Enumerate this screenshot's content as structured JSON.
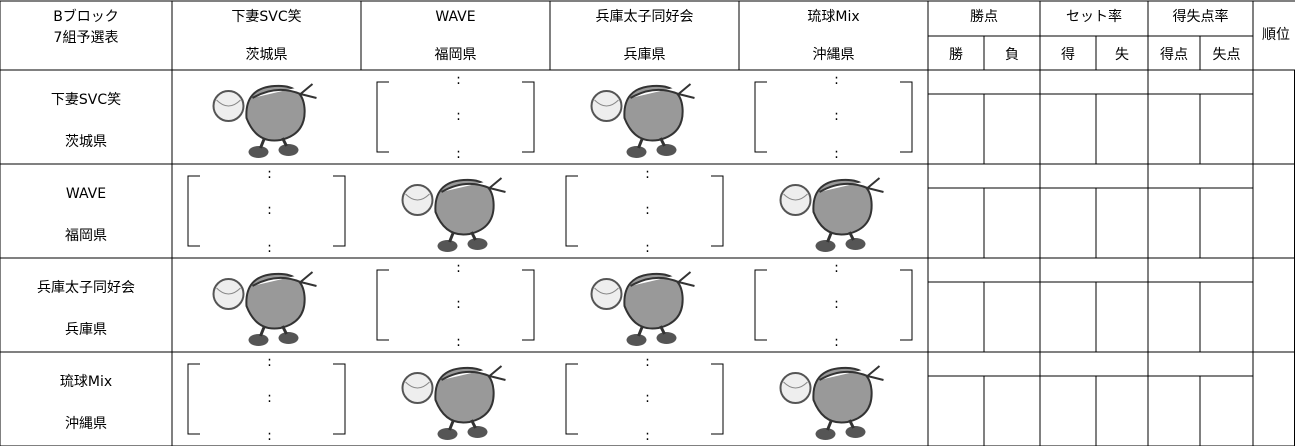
{
  "header": {
    "block": "Bブロック",
    "group": "7組予選表"
  },
  "teams": [
    {
      "name": "下妻SVC笑",
      "pref": "茨城県"
    },
    {
      "name": "WAVE",
      "pref": "福岡県"
    },
    {
      "name": "兵庫太子同好会",
      "pref": "兵庫県"
    },
    {
      "name": "琉球Mix",
      "pref": "沖縄県"
    }
  ],
  "stats_headers": {
    "win_points": "勝点",
    "win": "勝",
    "loss": "負",
    "set_rate": "セット率",
    "set_won": "得",
    "set_lost": "失",
    "point_rate": "得失点率",
    "points_for": "得点",
    "points_against": "失点",
    "rank": "順位"
  },
  "score_separator": ":"
}
